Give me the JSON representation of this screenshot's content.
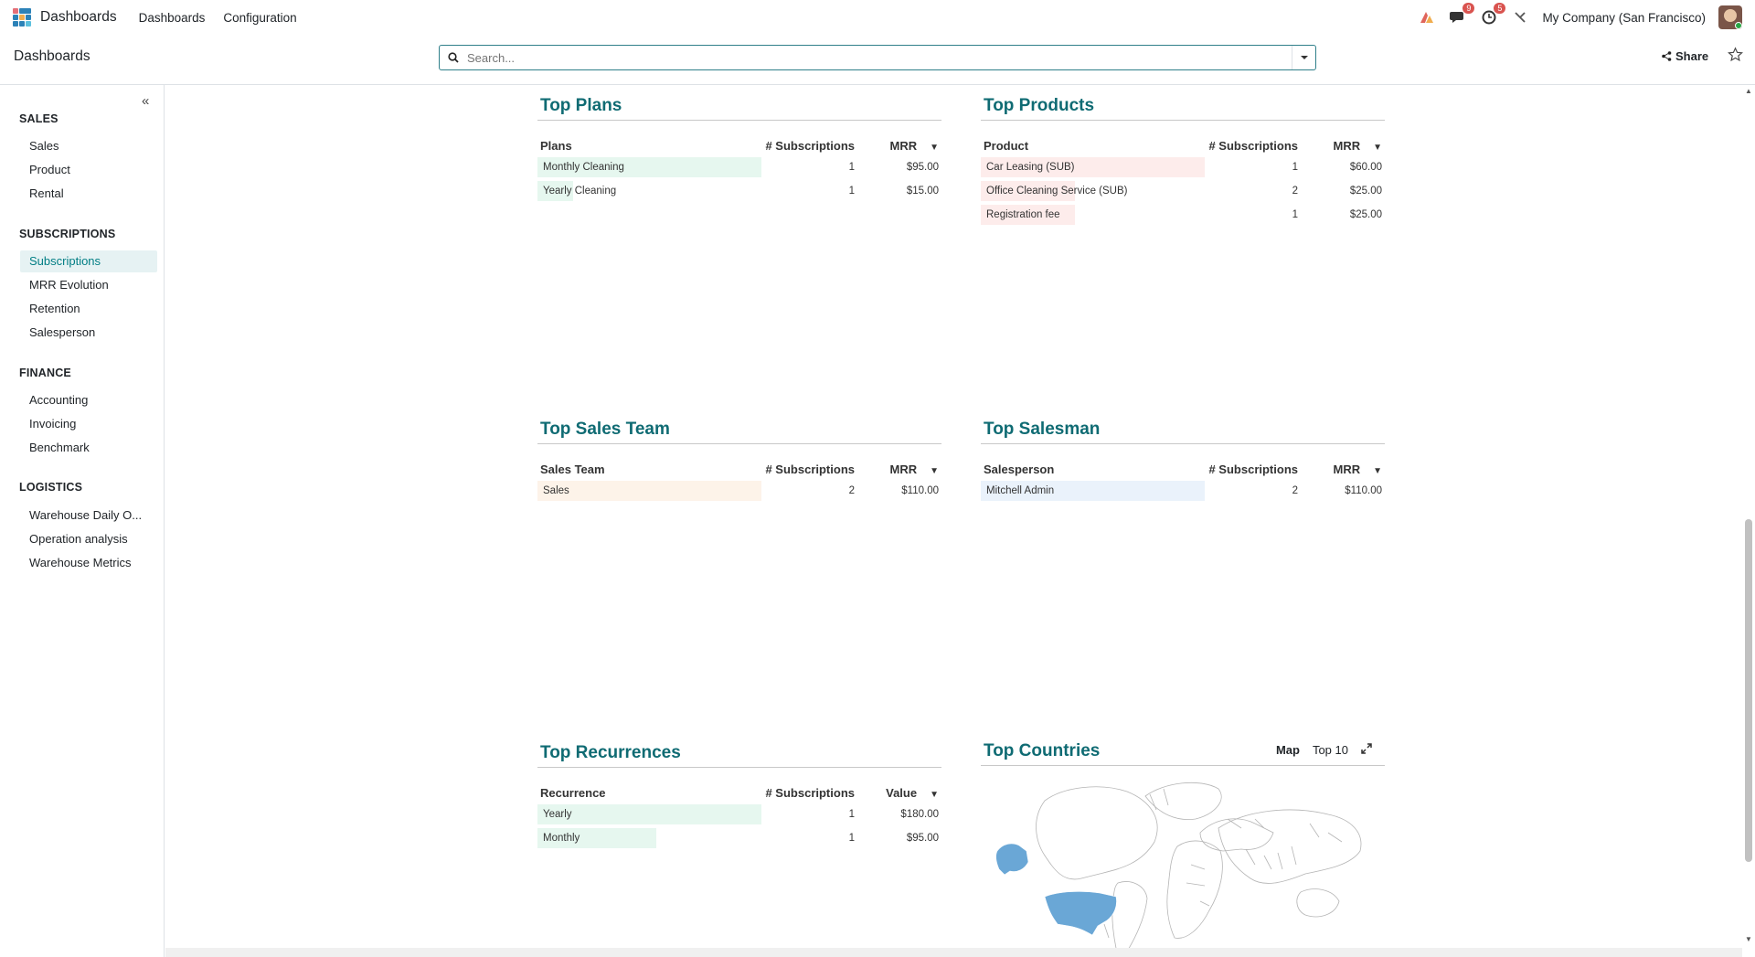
{
  "navbar": {
    "app_name": "Dashboards",
    "menu": [
      "Dashboards",
      "Configuration"
    ],
    "messages_count": "9",
    "activities_count": "5",
    "company": "My Company (San Francisco)"
  },
  "control": {
    "breadcrumb": "Dashboards",
    "search_placeholder": "Search...",
    "share_label": "Share"
  },
  "sidebar": {
    "sections": [
      {
        "title": "SALES",
        "items": [
          "Sales",
          "Product",
          "Rental"
        ]
      },
      {
        "title": "SUBSCRIPTIONS",
        "items": [
          "Subscriptions",
          "MRR Evolution",
          "Retention",
          "Salesperson"
        ]
      },
      {
        "title": "FINANCE",
        "items": [
          "Accounting",
          "Invoicing",
          "Benchmark"
        ]
      },
      {
        "title": "LOGISTICS",
        "items": [
          "Warehouse Daily O...",
          "Operation analysis",
          "Warehouse Metrics"
        ]
      }
    ],
    "active_item": "Subscriptions"
  },
  "widgets": {
    "top_plans": {
      "title": "Top Plans",
      "headers": [
        "Plans",
        "# Subscriptions",
        "MRR"
      ],
      "rows": [
        {
          "label": "Monthly Cleaning",
          "count": "1",
          "value": "$95.00",
          "share": 1.0
        },
        {
          "label": "Yearly Cleaning",
          "count": "1",
          "value": "$15.00",
          "share": 0.16
        }
      ],
      "bar_color": "#e6f7ef"
    },
    "top_products": {
      "title": "Top Products",
      "headers": [
        "Product",
        "# Subscriptions",
        "MRR"
      ],
      "rows": [
        {
          "label": "Car Leasing (SUB)",
          "count": "1",
          "value": "$60.00",
          "share": 1.0
        },
        {
          "label": "Office Cleaning Service (SUB)",
          "count": "2",
          "value": "$25.00",
          "share": 0.42
        },
        {
          "label": "Registration fee",
          "count": "1",
          "value": "$25.00",
          "share": 0.42
        }
      ],
      "bar_color": "#fdeceb"
    },
    "top_sales_team": {
      "title": "Top Sales Team",
      "headers": [
        "Sales Team",
        "# Subscriptions",
        "MRR"
      ],
      "rows": [
        {
          "label": "Sales",
          "count": "2",
          "value": "$110.00",
          "share": 1.0
        }
      ],
      "bar_color": "#fdf3e9"
    },
    "top_salesman": {
      "title": "Top Salesman",
      "headers": [
        "Salesperson",
        "# Subscriptions",
        "MRR"
      ],
      "rows": [
        {
          "label": "Mitchell Admin",
          "count": "2",
          "value": "$110.00",
          "share": 1.0
        }
      ],
      "bar_color": "#eaf2fb"
    },
    "top_recurrences": {
      "title": "Top Recurrences",
      "headers": [
        "Recurrence",
        "# Subscriptions",
        "Value"
      ],
      "rows": [
        {
          "label": "Yearly",
          "count": "1",
          "value": "$180.00",
          "share": 1.0
        },
        {
          "label": "Monthly",
          "count": "1",
          "value": "$95.00",
          "share": 0.53
        }
      ],
      "bar_color": "#e6f7ef"
    },
    "top_countries": {
      "title": "Top Countries",
      "tabs": [
        "Map",
        "Top 10"
      ],
      "active_tab": "Map",
      "highlight_color": "#6aa7d6"
    }
  }
}
